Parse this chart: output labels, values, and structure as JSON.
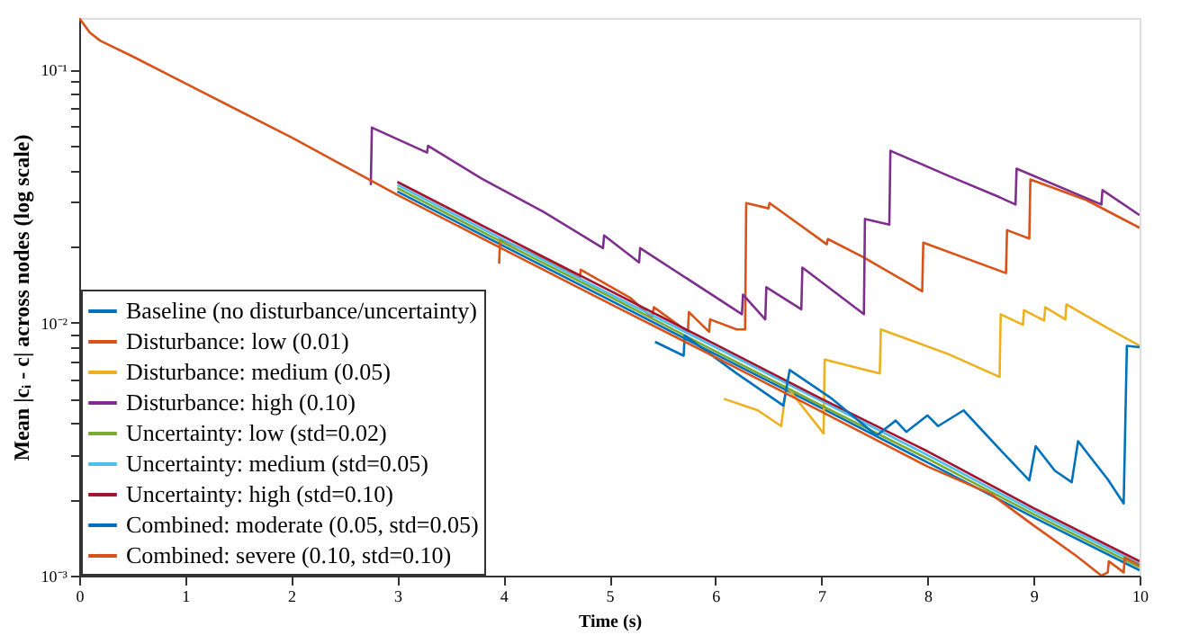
{
  "chart_data": {
    "type": "line",
    "xlabel": "Time (s)",
    "ylabel": "Mean |cᵢ - c| across nodes (log scale)",
    "xlim": [
      0,
      10
    ],
    "xticks": [
      0,
      1,
      2,
      3,
      4,
      5,
      6,
      7,
      8,
      9,
      10
    ],
    "ylim": [
      0.001,
      0.16
    ],
    "log": "y",
    "yticks": [
      {
        "value": 0.001,
        "label": "10⁻³"
      },
      {
        "value": 0.002,
        "label": null
      },
      {
        "value": 0.003,
        "label": null
      },
      {
        "value": 0.004,
        "label": null
      },
      {
        "value": 0.005,
        "label": null
      },
      {
        "value": 0.006,
        "label": null
      },
      {
        "value": 0.007,
        "label": null
      },
      {
        "value": 0.008,
        "label": null
      },
      {
        "value": 0.009,
        "label": null
      },
      {
        "value": 0.01,
        "label": "10⁻²"
      },
      {
        "value": 0.02,
        "label": null
      },
      {
        "value": 0.03,
        "label": null
      },
      {
        "value": 0.04,
        "label": null
      },
      {
        "value": 0.05,
        "label": null
      },
      {
        "value": 0.06,
        "label": null
      },
      {
        "value": 0.07,
        "label": null
      },
      {
        "value": 0.08,
        "label": null
      },
      {
        "value": 0.09,
        "label": null
      },
      {
        "value": 0.1,
        "label": "10⁻¹"
      }
    ],
    "grid": false,
    "legend": "bottom left",
    "line_style": "solid",
    "marker": "none",
    "x": [
      3,
      4,
      5,
      6,
      7,
      8,
      9,
      10
    ],
    "series": [
      {
        "name": "Baseline (no disturbance/uncertainty)",
        "color": "#0072bd",
        "values": [
          0.033,
          0.0201,
          0.0123,
          0.0075,
          0.0046,
          0.0028,
          0.0017,
          0.00105
        ]
      },
      {
        "name": "Disturbance: low (0.01)",
        "color": "#d95319",
        "x": [
          3.96,
          3.97,
          4.5,
          4.72,
          4.73,
          5.2,
          5.4,
          5.42,
          5.74,
          5.75,
          5.94,
          5.95,
          6.2,
          6.28,
          6.29,
          6.5,
          6.51,
          7.05,
          7.06,
          7.39,
          7.95,
          7.96,
          8.74,
          8.75,
          8.96,
          8.97,
          9.5,
          10
        ],
        "values": [
          0.0171,
          0.0214,
          0.017,
          0.015,
          0.0162,
          0.0125,
          0.0105,
          0.0115,
          0.0092,
          0.011,
          0.0092,
          0.0103,
          0.0094,
          0.0094,
          0.0297,
          0.0283,
          0.0297,
          0.0204,
          0.0214,
          0.0182,
          0.0133,
          0.0207,
          0.0157,
          0.0232,
          0.0215,
          0.0368,
          0.0305,
          0.0237
        ]
      },
      {
        "name": "Disturbance: medium (0.05)",
        "color": "#edb120",
        "x": [
          6.08,
          6.4,
          6.62,
          6.67,
          7.02,
          7.03,
          7.55,
          7.56,
          8.2,
          8.68,
          8.69,
          8.9,
          8.91,
          9.1,
          9.11,
          9.3,
          9.31,
          9.7,
          10
        ],
        "values": [
          0.005,
          0.0045,
          0.0039,
          0.0056,
          0.00365,
          0.00715,
          0.0063,
          0.0094,
          0.0075,
          0.0061,
          0.0108,
          0.0098,
          0.0112,
          0.0102,
          0.0115,
          0.0103,
          0.0118,
          0.0095,
          0.0081
        ]
      },
      {
        "name": "Disturbance: high (0.10)",
        "color": "#7e2f8e",
        "x": [
          2.75,
          2.76,
          3.28,
          3.29,
          3.8,
          4.38,
          4.94,
          4.95,
          5.28,
          5.29,
          6.25,
          6.26,
          6.47,
          6.48,
          6.81,
          6.82,
          7.4,
          7.41,
          7.64,
          7.65,
          8.2,
          8.68,
          8.83,
          8.84,
          9.64,
          9.65,
          10
        ],
        "values": [
          0.035,
          0.059,
          0.047,
          0.05,
          0.037,
          0.0274,
          0.0197,
          0.0221,
          0.0173,
          0.0197,
          0.0108,
          0.0129,
          0.0103,
          0.0138,
          0.0113,
          0.0165,
          0.0108,
          0.0257,
          0.0244,
          0.0478,
          0.038,
          0.0313,
          0.0293,
          0.0406,
          0.0293,
          0.0334,
          0.0266
        ]
      },
      {
        "name": "Uncertainty: low (std=0.02)",
        "color": "#77ac30",
        "values": [
          0.034,
          0.0207,
          0.0127,
          0.0077,
          0.0047,
          0.0029,
          0.00175,
          0.00108
        ]
      },
      {
        "name": "Uncertainty: medium (std=0.05)",
        "color": "#4dbeee",
        "values": [
          0.035,
          0.0213,
          0.013,
          0.008,
          0.0049,
          0.003,
          0.0018,
          0.00111
        ]
      },
      {
        "name": "Uncertainty: high (std=0.10)",
        "color": "#a2142f",
        "values": [
          0.036,
          0.0219,
          0.0134,
          0.0082,
          0.005,
          0.0031,
          0.00185,
          0.00114
        ]
      },
      {
        "name": "Combined: moderate (0.05, std=0.05)",
        "color": "#0072bd",
        "x": [
          5.43,
          5.7,
          5.71,
          6.2,
          6.64,
          6.7,
          7.1,
          7.52,
          7.7,
          7.8,
          8.0,
          8.1,
          8.34,
          8.7,
          8.96,
          9.02,
          9.2,
          9.36,
          9.42,
          9.7,
          9.85,
          9.88,
          10
        ],
        "values": [
          0.0084,
          0.0074,
          0.0089,
          0.0063,
          0.0047,
          0.0065,
          0.005,
          0.00358,
          0.0041,
          0.0037,
          0.0043,
          0.0039,
          0.0045,
          0.0031,
          0.00238,
          0.00325,
          0.0026,
          0.00234,
          0.0034,
          0.0024,
          0.00193,
          0.0081,
          0.008
        ]
      },
      {
        "name": "Combined: severe (0.10, std=0.10)",
        "color": "#d95319",
        "x": [
          0,
          0.1,
          0.2,
          0.5,
          1,
          2,
          3,
          4,
          5,
          6,
          7,
          8,
          8.6,
          9,
          9.4,
          9.64,
          9.7,
          9.71,
          9.85,
          9.86,
          10
        ],
        "values": [
          0.16,
          0.14,
          0.13,
          0.113,
          0.0883,
          0.054,
          0.032,
          0.0195,
          0.0119,
          0.0073,
          0.00445,
          0.0027,
          0.0021,
          0.00158,
          0.0012,
          0.001,
          0.00103,
          0.00114,
          0.00103,
          0.00118,
          0.0011
        ]
      }
    ]
  }
}
